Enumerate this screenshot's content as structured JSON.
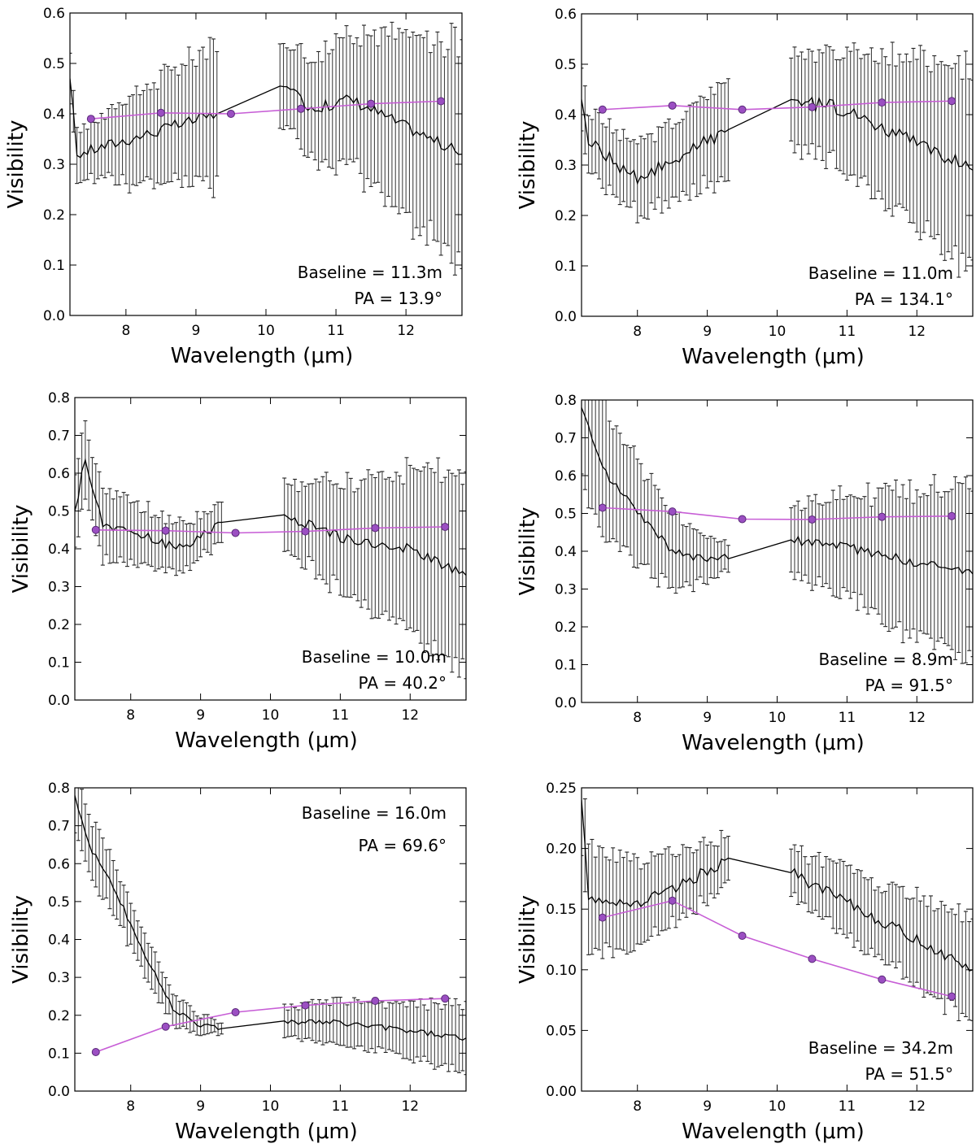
{
  "chart_data": [
    {
      "type": "line",
      "xlabel": "Wavelength (μm)",
      "ylabel": "Visibility",
      "xlim": [
        7.2,
        12.8
      ],
      "ylim": [
        0.0,
        0.6
      ],
      "xticks": [
        8,
        9,
        10,
        11,
        12
      ],
      "xtick_labels": [
        "8",
        "9",
        "10",
        "11",
        "12"
      ],
      "yticks": [
        0.0,
        0.1,
        0.2,
        0.3,
        0.4,
        0.5,
        0.6
      ],
      "ytick_labels": [
        "0.0",
        "0.1",
        "0.2",
        "0.3",
        "0.4",
        "0.5",
        "0.6"
      ],
      "baseline_text": "Baseline = 11.3m",
      "pa_text": "PA = 13.9°",
      "annotation_position": "bottom-right",
      "model": {
        "x": [
          7.5,
          8.5,
          9.5,
          10.5,
          11.5,
          12.5
        ],
        "y": [
          0.39,
          0.402,
          0.4,
          0.41,
          0.42,
          0.425
        ]
      },
      "observed": {
        "segments": [
          {
            "x": [
              7.2,
              7.3,
              9.3
            ],
            "y": [
              0.47,
              0.32,
              0.4
            ]
          },
          {
            "x": [
              10.2,
              10.7,
              11.2,
              12.8
            ],
            "y": [
              0.455,
              0.41,
              0.43,
              0.32
            ]
          }
        ],
        "noise": 0.012,
        "err_start": 0.045,
        "err_end": 0.14,
        "err_start2": 0.08,
        "err_end2": 0.22
      }
    },
    {
      "type": "line",
      "xlabel": "Wavelength (μm)",
      "ylabel": "Visibility",
      "xlim": [
        7.2,
        12.8
      ],
      "ylim": [
        0.0,
        0.6
      ],
      "xticks": [
        8,
        9,
        10,
        11,
        12
      ],
      "xtick_labels": [
        "8",
        "9",
        "10",
        "11",
        "12"
      ],
      "yticks": [
        0.0,
        0.1,
        0.2,
        0.3,
        0.4,
        0.5,
        0.6
      ],
      "ytick_labels": [
        "0.0",
        "0.1",
        "0.2",
        "0.3",
        "0.4",
        "0.5",
        "0.6"
      ],
      "baseline_text": "Baseline = 11.0m",
      "pa_text": "PA = 134.1°",
      "annotation_position": "bottom-right",
      "model": {
        "x": [
          7.5,
          8.5,
          9.5,
          10.5,
          11.5,
          12.5
        ],
        "y": [
          0.41,
          0.418,
          0.41,
          0.415,
          0.424,
          0.427
        ]
      },
      "observed": {
        "segments": [
          {
            "x": [
              7.2,
              7.3,
              8.0,
              9.3
            ],
            "y": [
              0.43,
              0.35,
              0.27,
              0.37
            ]
          },
          {
            "x": [
              10.2,
              11.0,
              12.8
            ],
            "y": [
              0.43,
              0.41,
              0.29
            ]
          }
        ],
        "noise": 0.014,
        "err_start": 0.06,
        "err_end": 0.09,
        "err_start2": 0.09,
        "err_end2": 0.2
      }
    },
    {
      "type": "line",
      "xlabel": "Wavelength (μm)",
      "ylabel": "Visibility",
      "xlim": [
        7.2,
        12.8
      ],
      "ylim": [
        0.0,
        0.8
      ],
      "xticks": [
        8,
        9,
        10,
        11,
        12
      ],
      "xtick_labels": [
        "8",
        "9",
        "10",
        "11",
        "12"
      ],
      "yticks": [
        0.0,
        0.1,
        0.2,
        0.3,
        0.4,
        0.5,
        0.6,
        0.7,
        0.8
      ],
      "ytick_labels": [
        "0.0",
        "0.1",
        "0.2",
        "0.3",
        "0.4",
        "0.5",
        "0.6",
        "0.7",
        "0.8"
      ],
      "baseline_text": "Baseline = 10.0m",
      "pa_text": "PA = 40.2°",
      "annotation_position": "bottom-right",
      "model": {
        "x": [
          7.5,
          8.5,
          9.5,
          10.5,
          11.5,
          12.5
        ],
        "y": [
          0.45,
          0.448,
          0.442,
          0.446,
          0.455,
          0.458
        ]
      },
      "observed": {
        "segments": [
          {
            "x": [
              7.2,
              7.35,
              7.6,
              8.0,
              8.7,
              9.3
            ],
            "y": [
              0.5,
              0.64,
              0.46,
              0.45,
              0.4,
              0.47
            ]
          },
          {
            "x": [
              10.2,
              11.0,
              12.0,
              12.8
            ],
            "y": [
              0.49,
              0.43,
              0.4,
              0.33
            ]
          }
        ],
        "noise": 0.013,
        "err_start": 0.1,
        "err_end": 0.05,
        "err_start2": 0.09,
        "err_end2": 0.26
      }
    },
    {
      "type": "line",
      "xlabel": "Wavelength (μm)",
      "ylabel": "Visibility",
      "xlim": [
        7.2,
        12.8
      ],
      "ylim": [
        0.0,
        0.8
      ],
      "xticks": [
        8,
        9,
        10,
        11,
        12
      ],
      "xtick_labels": [
        "8",
        "9",
        "10",
        "11",
        "12"
      ],
      "yticks": [
        0.0,
        0.1,
        0.2,
        0.3,
        0.4,
        0.5,
        0.6,
        0.7,
        0.8
      ],
      "ytick_labels": [
        "0.0",
        "0.1",
        "0.2",
        "0.3",
        "0.4",
        "0.5",
        "0.6",
        "0.7",
        "0.8"
      ],
      "baseline_text": "Baseline = 8.9m",
      "pa_text": "PA = 91.5°",
      "annotation_position": "bottom-right",
      "model": {
        "x": [
          7.5,
          8.5,
          9.5,
          10.5,
          11.5,
          12.5
        ],
        "y": [
          0.515,
          0.505,
          0.485,
          0.484,
          0.491,
          0.493
        ]
      },
      "observed": {
        "segments": [
          {
            "x": [
              7.2,
              7.5,
              8.0,
              8.5,
              9.0,
              9.3
            ],
            "y": [
              0.78,
              0.62,
              0.5,
              0.4,
              0.38,
              0.38
            ]
          },
          {
            "x": [
              10.2,
              11.0,
              12.0,
              12.8
            ],
            "y": [
              0.43,
              0.41,
              0.37,
              0.34
            ]
          }
        ],
        "noise": 0.012,
        "err_start": 0.2,
        "err_end": 0.035,
        "err_start2": 0.09,
        "err_end2": 0.24
      }
    },
    {
      "type": "line",
      "xlabel": "Wavelength (μm)",
      "ylabel": "Visibility",
      "xlim": [
        7.2,
        12.8
      ],
      "ylim": [
        0.0,
        0.8
      ],
      "xticks": [
        8,
        9,
        10,
        11,
        12
      ],
      "xtick_labels": [
        "8",
        "9",
        "10",
        "11",
        "12"
      ],
      "yticks": [
        0.0,
        0.1,
        0.2,
        0.3,
        0.4,
        0.5,
        0.6,
        0.7,
        0.8
      ],
      "ytick_labels": [
        "0.0",
        "0.1",
        "0.2",
        "0.3",
        "0.4",
        "0.5",
        "0.6",
        "0.7",
        "0.8"
      ],
      "baseline_text": "Baseline = 16.0m",
      "pa_text": "PA = 69.6°",
      "annotation_position": "top-right",
      "model": {
        "x": [
          7.5,
          8.5,
          9.5,
          10.5,
          11.5,
          12.5
        ],
        "y": [
          0.103,
          0.17,
          0.208,
          0.226,
          0.238,
          0.244
        ]
      },
      "observed": {
        "segments": [
          {
            "x": [
              7.2,
              7.4,
              7.8,
              8.2,
              8.6,
              9.0,
              9.3
            ],
            "y": [
              0.78,
              0.65,
              0.52,
              0.36,
              0.22,
              0.175,
              0.165
            ]
          },
          {
            "x": [
              10.2,
              11.0,
              12.0,
              12.8
            ],
            "y": [
              0.185,
              0.18,
              0.16,
              0.14
            ]
          }
        ],
        "noise": 0.008,
        "err_start": 0.09,
        "err_end": 0.015,
        "err_start2": 0.04,
        "err_end2": 0.09
      }
    },
    {
      "type": "line",
      "xlabel": "Wavelength (μm)",
      "ylabel": "Visibility",
      "xlim": [
        7.2,
        12.8
      ],
      "ylim": [
        0.0,
        0.25
      ],
      "xticks": [
        8,
        9,
        10,
        11,
        12
      ],
      "xtick_labels": [
        "8",
        "9",
        "10",
        "11",
        "12"
      ],
      "yticks": [
        0.0,
        0.05,
        0.1,
        0.15,
        0.2,
        0.25
      ],
      "ytick_labels": [
        "0.00",
        "0.05",
        "0.10",
        "0.15",
        "0.20",
        "0.25"
      ],
      "baseline_text": "Baseline = 34.2m",
      "pa_text": "PA = 51.5°",
      "annotation_position": "bottom-right",
      "model": {
        "x": [
          7.5,
          8.5,
          9.5,
          10.5,
          11.5,
          12.5
        ],
        "y": [
          0.143,
          0.157,
          0.128,
          0.109,
          0.092,
          0.078
        ]
      },
      "observed": {
        "segments": [
          {
            "x": [
              7.2,
              7.3,
              8.0,
              8.5,
              9.3
            ],
            "y": [
              0.24,
              0.16,
              0.155,
              0.165,
              0.192
            ]
          },
          {
            "x": [
              10.2,
              11.0,
              12.0,
              12.8
            ],
            "y": [
              0.18,
              0.155,
              0.125,
              0.1
            ]
          }
        ],
        "noise": 0.005,
        "err_start": 0.045,
        "err_end": 0.02,
        "err_start2": 0.02,
        "err_end2": 0.045
      }
    }
  ]
}
